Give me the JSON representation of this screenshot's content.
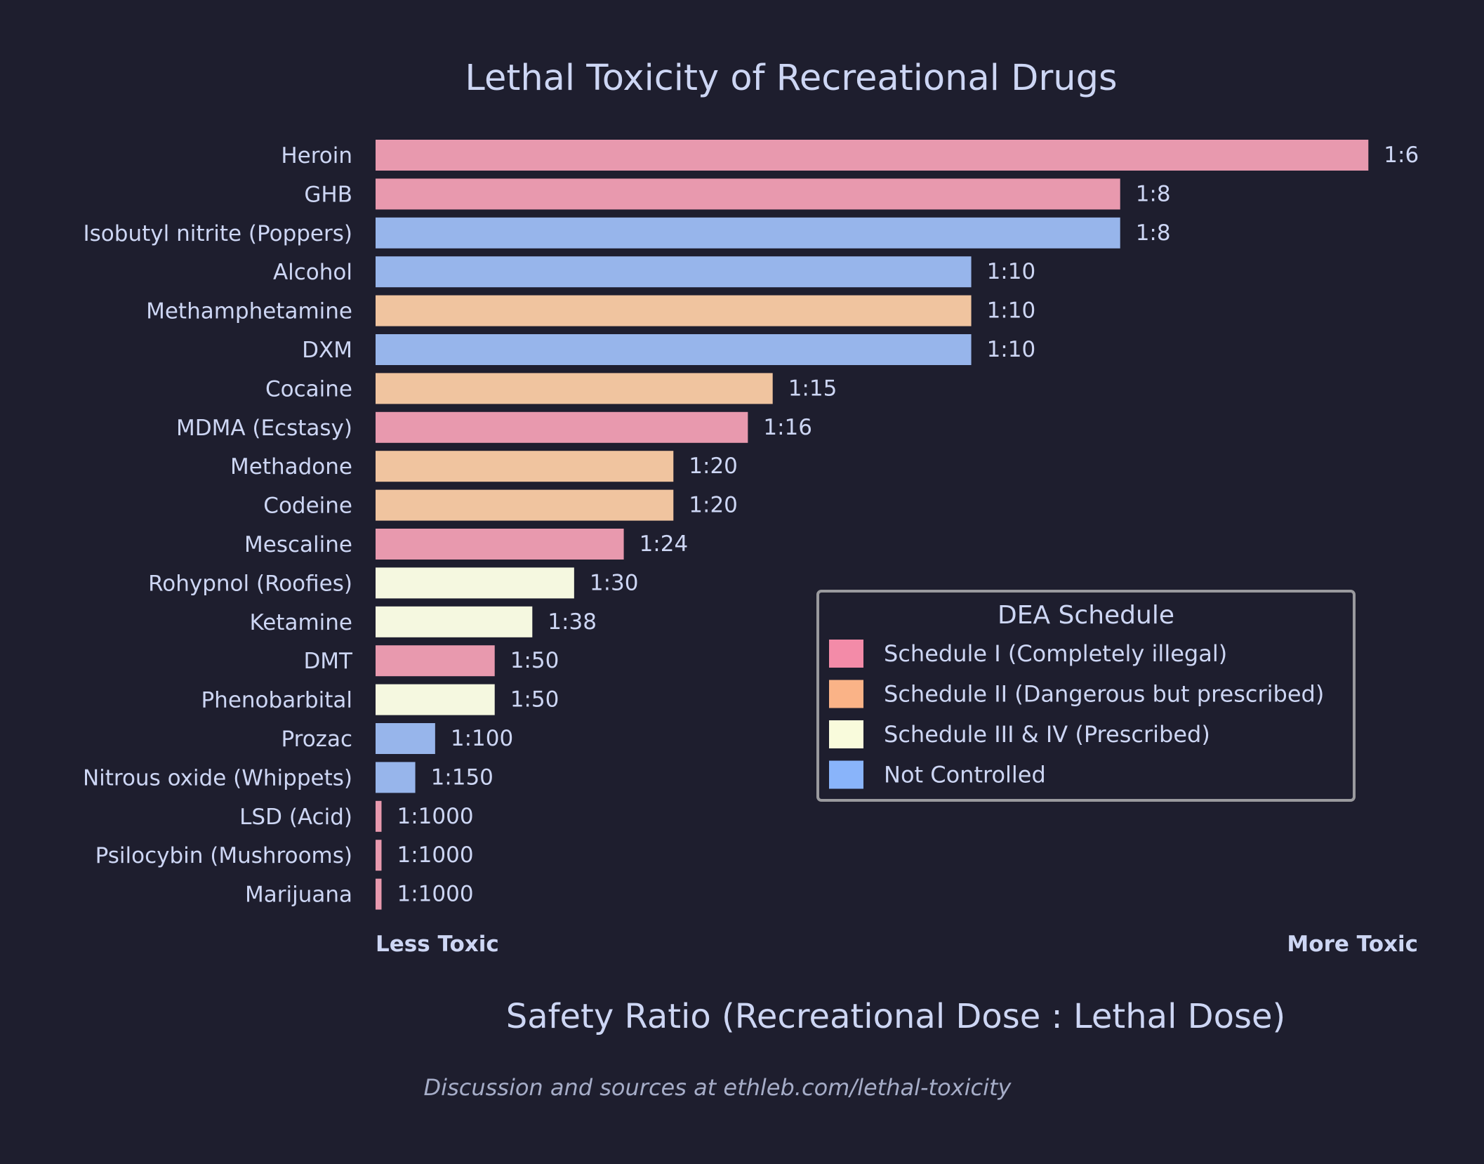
{
  "chart_data": {
    "type": "bar",
    "orientation": "horizontal",
    "title": "Lethal Toxicity of Recreational Drugs",
    "xlabel": "Safety Ratio (Recreational Dose : Lethal Dose)",
    "x_axis_left_label": "Less Toxic",
    "x_axis_right_label": "More Toxic",
    "xlim": [
      0,
      0.175
    ],
    "grid": false,
    "value_definition": "bar length = 1 / ratio",
    "categories": [
      "Heroin",
      "GHB",
      "Isobutyl nitrite (Poppers)",
      "Alcohol",
      "Methamphetamine",
      "DXM",
      "Cocaine",
      "MDMA (Ecstasy)",
      "Methadone",
      "Codeine",
      "Mescaline",
      "Rohypnol (Roofies)",
      "Ketamine",
      "DMT",
      "Phenobarbital",
      "Prozac",
      "Nitrous oxide (Whippets)",
      "LSD (Acid)",
      "Psilocybin (Mushrooms)",
      "Marijuana"
    ],
    "ratios": [
      6,
      8,
      8,
      10,
      10,
      10,
      15,
      16,
      20,
      20,
      24,
      30,
      38,
      50,
      50,
      100,
      150,
      1000,
      1000,
      1000
    ],
    "data_labels": [
      "1:6",
      "1:8",
      "1:8",
      "1:10",
      "1:10",
      "1:10",
      "1:15",
      "1:16",
      "1:20",
      "1:20",
      "1:24",
      "1:30",
      "1:38",
      "1:50",
      "1:50",
      "1:100",
      "1:150",
      "1:1000",
      "1:1000",
      "1:1000"
    ],
    "schedule": [
      0,
      0,
      3,
      3,
      1,
      3,
      1,
      0,
      1,
      1,
      0,
      2,
      2,
      0,
      2,
      3,
      3,
      0,
      0,
      0
    ],
    "legend": {
      "title": "DEA Schedule",
      "placement": "center-right",
      "entries": [
        {
          "label": "Schedule I (Completely illegal)",
          "color": "#f38ba8"
        },
        {
          "label": "Schedule II (Dangerous but prescribed)",
          "color": "#fab387"
        },
        {
          "label": "Schedule III & IV (Prescribed)",
          "color": "#f9fbdc"
        },
        {
          "label": "Not Controlled",
          "color": "#89b4fa"
        }
      ]
    }
  },
  "footer": "Discussion and sources at ethleb.com/lethal-toxicity",
  "colors": {
    "background": "#1e1e2e",
    "text": "#cdd6f4",
    "muted": "#a6adc8",
    "legend_border": "#9a9a9e"
  }
}
